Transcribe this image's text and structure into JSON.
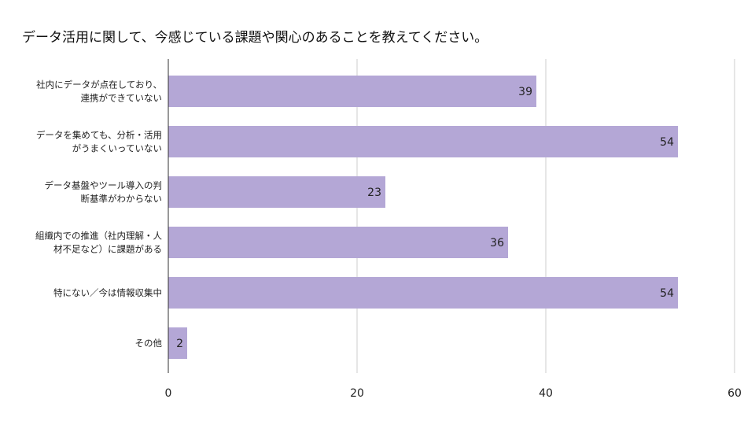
{
  "chart_data": {
    "type": "bar",
    "orientation": "horizontal",
    "title": "データ活用に関して、今感じている課題や関心のあることを教えてください。",
    "categories": [
      [
        "社内にデータが点在しており、",
        "連携ができていない"
      ],
      [
        "データを集めても、分析・活用",
        "がうまくいっていない"
      ],
      [
        "データ基盤やツール導入の判",
        "断基準がわからない"
      ],
      [
        "組織内での推進（社内理解・人",
        "材不足など）に課題がある"
      ],
      [
        "特にない／今は情報収集中"
      ],
      [
        "その他"
      ]
    ],
    "values": [
      39,
      54,
      23,
      36,
      54,
      2
    ],
    "xlim": [
      0,
      60
    ],
    "x_ticks": [
      0,
      20,
      40,
      60
    ],
    "grid": true,
    "legend": "none",
    "bar_color": "#b4a7d6"
  }
}
